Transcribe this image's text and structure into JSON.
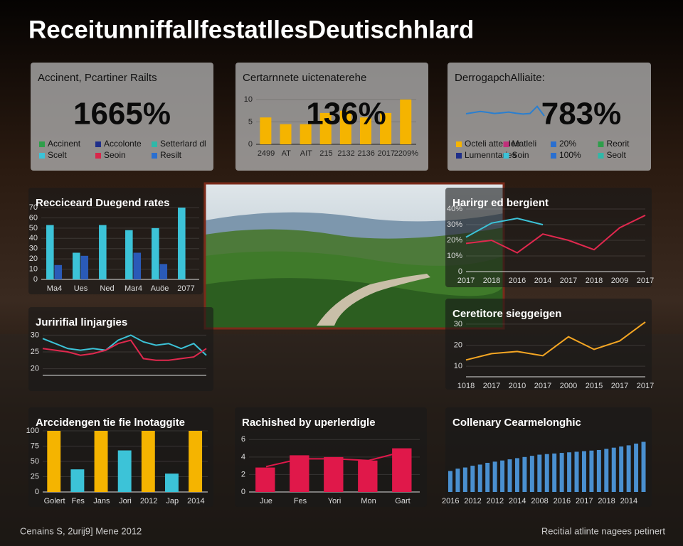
{
  "title": "ReceitunniffallfestatllesDeutischhlard",
  "chart_data": [
    {
      "type": "kpi",
      "title": "Accinent, Pcartiner Railts",
      "kpi": {
        "value": 1665,
        "label": "1665%"
      },
      "legend": [
        {
          "name": "Accinent",
          "color": "#2e9e4a"
        },
        {
          "name": "Accolonte",
          "color": "#1f2f8a"
        },
        {
          "name": "Setterlard dl",
          "color": "#2fb8a8"
        },
        {
          "name": "Scelt",
          "color": "#3cc3d8"
        },
        {
          "name": "Seoin",
          "color": "#d8264a"
        },
        {
          "name": "Resilt",
          "color": "#2a6fd0"
        }
      ]
    },
    {
      "type": "bar",
      "title": "Certarnnete uictenaterehe",
      "kpi": {
        "value": 136,
        "label": "136%"
      },
      "categories": [
        "2499",
        "AT",
        "AIT",
        "215",
        "2132",
        "2136",
        "2017",
        "2209%"
      ],
      "series": [
        {
          "color": "#f5b400",
          "values": [
            6,
            4.5,
            4.5,
            7,
            7.5,
            6,
            7,
            10
          ]
        }
      ],
      "ylim": [
        0,
        10
      ],
      "yticks": [
        0,
        5,
        10
      ]
    },
    {
      "type": "line",
      "title": "DerrogapchAlliaite:",
      "kpi": {
        "value": 783,
        "label": "783%"
      },
      "series": [
        {
          "color": "#2a7fd0",
          "values": [
            5,
            5.4,
            5.8,
            5.5,
            5.1,
            5.3,
            5.6,
            5.2,
            4.9,
            5.1,
            7.6,
            4.2
          ]
        }
      ],
      "ylim": [
        0,
        10
      ],
      "legend": [
        {
          "name": "Octeli atterdee",
          "color": "#f5b400"
        },
        {
          "name": "Matleli",
          "color": "#c0307a"
        },
        {
          "name": "20%",
          "color": "#2a6fd0"
        },
        {
          "name": "Reorit",
          "color": "#2e9e4a"
        },
        {
          "name": "Lumenntaries",
          "color": "#1f2f8a"
        },
        {
          "name": "Soin",
          "color": "#3cc3d8"
        },
        {
          "name": "100%",
          "color": "#2a6fd0"
        },
        {
          "name": "Seolt",
          "color": "#2fb8a8"
        }
      ]
    },
    {
      "type": "bar",
      "title": "Recciceard Duegend rates",
      "categories": [
        "Ma4",
        "Ues",
        "Ned",
        "Mar4",
        "Auöe",
        "2077"
      ],
      "series": [
        {
          "color": "#3cc3d8",
          "values": [
            53,
            26,
            53,
            48,
            50,
            70
          ]
        },
        {
          "color": "#2a5ab8",
          "values": [
            14,
            23,
            null,
            26,
            15,
            null
          ]
        }
      ],
      "ylim": [
        0,
        70
      ],
      "yticks": [
        0,
        10,
        20,
        30,
        40,
        50,
        60,
        70
      ]
    },
    {
      "type": "line",
      "title": "Juririfial linjargies",
      "series": [
        {
          "color": "#3cc3d8",
          "values": [
            29,
            27.5,
            26,
            25.5,
            26,
            25.5,
            28.5,
            30,
            28,
            27,
            27.5,
            26,
            27.5,
            24
          ]
        },
        {
          "color": "#e0284e",
          "values": [
            26,
            25.5,
            25,
            24,
            24.5,
            25.5,
            27.5,
            28.5,
            23,
            22.5,
            22.5,
            23,
            23.5,
            26
          ]
        }
      ],
      "ylim": [
        18,
        32
      ],
      "yticks": [
        20,
        25,
        30
      ]
    },
    {
      "type": "line",
      "title": "Harirgr ed bergient",
      "categories": [
        "2017",
        "2018",
        "2016",
        "2014",
        "2017",
        "2018",
        "2009",
        "2017"
      ],
      "series": [
        {
          "color": "#3cc3d8",
          "values": [
            22,
            31,
            34,
            30,
            null,
            null,
            null,
            null
          ]
        },
        {
          "color": "#e0284e",
          "values": [
            18,
            20,
            12,
            24,
            20,
            14,
            28,
            36
          ]
        }
      ],
      "ylim": [
        0,
        40
      ],
      "yticks": [
        0,
        {
          "value": 10,
          "label": "10%"
        },
        {
          "value": 20,
          "label": "20%"
        },
        {
          "value": 30,
          "label": "30%"
        },
        {
          "value": 40,
          "label": "40%"
        }
      ]
    },
    {
      "type": "line",
      "title": "Ceretitore sieggeigen",
      "categories": [
        "1018",
        "2017",
        "2010",
        "2017",
        "2000",
        "2015",
        "2017",
        "2017"
      ],
      "series": [
        {
          "color": "#f5a623",
          "values": [
            13,
            16,
            17,
            15,
            24,
            18,
            22,
            31
          ]
        }
      ],
      "ylim": [
        5,
        33
      ],
      "yticks": [
        10,
        20,
        30
      ]
    },
    {
      "type": "bar",
      "title": "Arccidengen tie fie lnotaggite",
      "categories": [
        "Golert",
        "Fes",
        "Jans",
        "Jori",
        "2012",
        "Jap",
        "2014"
      ],
      "series": [
        {
          "colors": [
            "#f5b400",
            "#3cc3d8",
            "#f5b400",
            "#3cc3d8",
            "#f5b400",
            "#3cc3d8",
            "#f5b400"
          ],
          "values": [
            100,
            37,
            100,
            68,
            100,
            30,
            100
          ]
        }
      ],
      "ylim": [
        0,
        100
      ],
      "yticks": [
        0,
        25,
        50,
        75,
        100
      ]
    },
    {
      "type": "bar",
      "title": "Rachished by uperlerdigle",
      "categories": [
        "Jue",
        "Fes",
        "Yori",
        "Mon",
        "Gart"
      ],
      "series": [
        {
          "color": "#e0184a",
          "values": [
            2.8,
            4.2,
            4,
            3.6,
            5
          ]
        },
        {
          "type": "line",
          "color": "#e0184a",
          "values": [
            2.9,
            3.8,
            3.8,
            3.6,
            4.6
          ]
        }
      ],
      "ylim": [
        0,
        7
      ],
      "yticks": [
        0,
        2,
        4,
        6
      ]
    },
    {
      "type": "bar",
      "title": "Collenary Cearmelonghic",
      "categories": [
        "2016",
        null,
        null,
        "2012",
        null,
        null,
        "2012",
        null,
        null,
        "2014",
        null,
        null,
        "2008",
        null,
        null,
        "2016",
        null,
        null,
        "2017",
        null,
        null,
        "2018",
        null,
        null,
        "2014",
        null,
        null
      ],
      "series": [
        {
          "color": "#4a90d0",
          "values": [
            36,
            40,
            42,
            45,
            47,
            50,
            52,
            54,
            56,
            58,
            60,
            62,
            64,
            65,
            66,
            67,
            68,
            69,
            70,
            71,
            72,
            74,
            76,
            78,
            80,
            83,
            86
          ]
        }
      ],
      "ylim": [
        0,
        100
      ]
    }
  ],
  "footer": {
    "left": "Cenains S, 2urij9] Mene 2012",
    "right": "Recitial atlinte nagees petinert"
  }
}
